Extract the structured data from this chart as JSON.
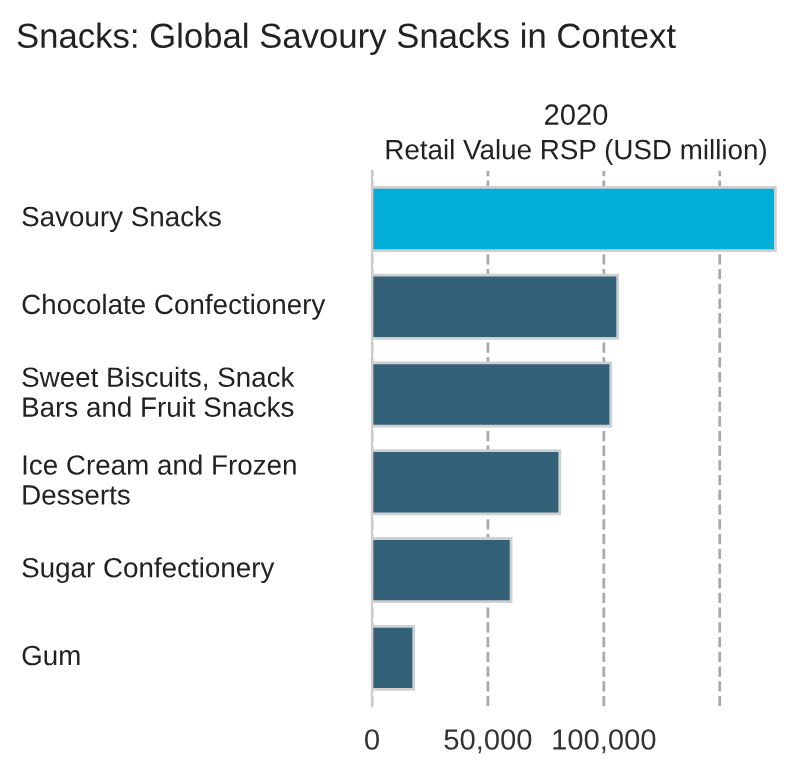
{
  "chart_data": {
    "type": "bar",
    "orientation": "horizontal",
    "title": "Snacks: Global Savoury Snacks in Context",
    "subtitle": "2020",
    "xlabel": "Retail Value RSP (USD million)",
    "categories": [
      "Savoury Snacks",
      "Chocolate Confectionery",
      "Sweet Biscuits, Snack Bars and Fruit Snacks",
      "Ice Cream and Frozen Desserts",
      "Sugar Confectionery",
      "Gum"
    ],
    "values": [
      174000,
      106000,
      103000,
      81000,
      60000,
      18000
    ],
    "colors": [
      "#00aed8",
      "#336178",
      "#336178",
      "#336178",
      "#336178",
      "#336178"
    ],
    "xlim": [
      0,
      176000
    ],
    "xticks": [
      0,
      {
        "value": 50000,
        "label": "50,000"
      },
      {
        "value": 100000,
        "label": "100,000"
      },
      {
        "value": 150000,
        "label": null
      }
    ],
    "grid": "x",
    "line_style": "dashed"
  }
}
